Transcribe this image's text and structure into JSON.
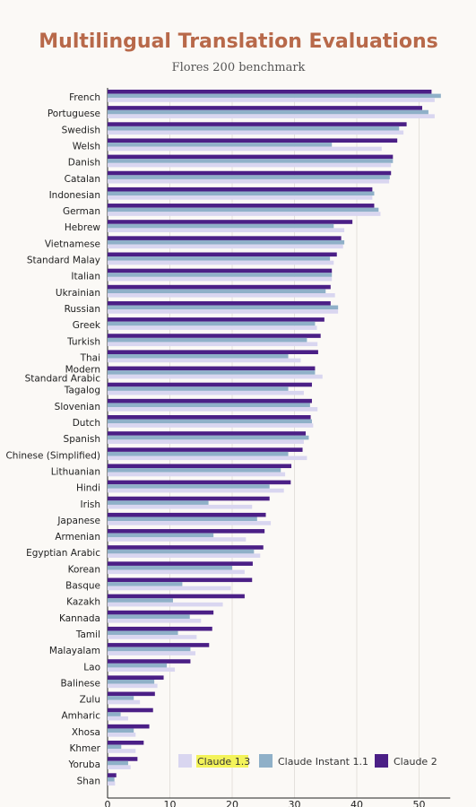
{
  "chart_data": {
    "type": "bar",
    "orientation": "horizontal",
    "title": "Multilingual Translation Evaluations",
    "subtitle": "Flores 200 benchmark",
    "xlabel": "",
    "ylabel": "",
    "xlim": [
      0,
      55
    ],
    "xticks": [
      "0",
      "10",
      "20",
      "30",
      "40",
      "50"
    ],
    "grid": true,
    "legend_position": "bottom-right",
    "categories": [
      "French",
      "Portuguese",
      "Swedish",
      "Welsh",
      "Danish",
      "Catalan",
      "Indonesian",
      "German",
      "Hebrew",
      "Vietnamese",
      "Standard Malay",
      "Italian",
      "Ukrainian",
      "Russian",
      "Greek",
      "Turkish",
      "Thai",
      "Modern Standard Arabic",
      "Tagalog",
      "Slovenian",
      "Dutch",
      "Spanish",
      "Chinese (Simplified)",
      "Lithuanian",
      "Hindi",
      "Irish",
      "Japanese",
      "Armenian",
      "Egyptian Arabic",
      "Korean",
      "Basque",
      "Kazakh",
      "Kannada",
      "Tamil",
      "Malayalam",
      "Lao",
      "Balinese",
      "Zulu",
      "Amharic",
      "Xhosa",
      "Khmer",
      "Yoruba",
      "Shan"
    ],
    "series": [
      {
        "name": "Claude 2",
        "color": "#4b1f86",
        "values": [
          52,
          50.5,
          48,
          46.5,
          45.8,
          45.5,
          42.5,
          42.8,
          39.3,
          37.5,
          36.8,
          36,
          35.8,
          35.8,
          34.8,
          34.2,
          33.8,
          33.3,
          32.8,
          32.8,
          32.6,
          31.8,
          31.3,
          29.5,
          29.4,
          26,
          25.4,
          25.2,
          25,
          23.3,
          23.2,
          22,
          17,
          16.8,
          16.3,
          13.3,
          9,
          7.6,
          7.3,
          6.7,
          5.8,
          4.8,
          1.4
        ]
      },
      {
        "name": "Claude Instant 1.1",
        "color": "#8fb0c8",
        "values": [
          53.5,
          51.5,
          46.8,
          36,
          45.8,
          45.3,
          42.8,
          43.5,
          36.3,
          38,
          35.7,
          36,
          35,
          37,
          33.3,
          32,
          29,
          33.3,
          29,
          32.5,
          32.8,
          32.3,
          29,
          27.8,
          26,
          16.2,
          24,
          17,
          23.5,
          20,
          12,
          10.5,
          13.2,
          11.3,
          13.3,
          9.5,
          7.5,
          4.2,
          2.1,
          4.2,
          2.2,
          3.3,
          1.1
        ]
      },
      {
        "name": "Claude 1.3",
        "color": "#d9d6f0",
        "values": [
          52.5,
          52.5,
          47.5,
          44,
          45.5,
          45.2,
          42.5,
          43.8,
          38,
          37.8,
          36.3,
          36,
          36.5,
          37,
          33.6,
          33.7,
          31,
          34.5,
          31.5,
          33.7,
          33,
          31.5,
          32,
          28.5,
          28.3,
          23.2,
          26.2,
          22.2,
          24.5,
          22,
          19.8,
          18.5,
          15,
          14.3,
          14.1,
          10.8,
          8,
          5.2,
          3.3,
          4.5,
          4.5,
          3.7,
          1.2
        ]
      }
    ]
  },
  "legend": [
    {
      "label": "Claude 1.3",
      "color": "#d9d6f0",
      "highlight": "#f3f35a"
    },
    {
      "label": "Claude Instant 1.1",
      "color": "#8fb0c8"
    },
    {
      "label": "Claude 2",
      "color": "#4b1f86"
    }
  ]
}
